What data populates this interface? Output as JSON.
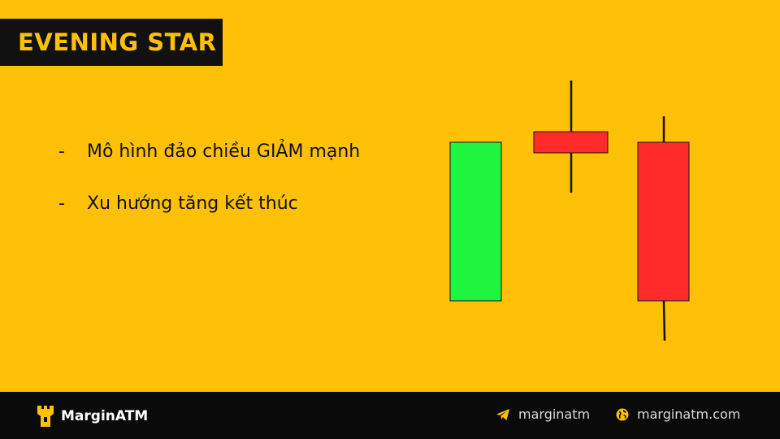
{
  "title": "EVENING STAR",
  "bullets": [
    {
      "dash": "-",
      "text": "Mô hình đảo chiều GIẢM mạnh"
    },
    {
      "dash": "-",
      "text": "Xu hướng tăng kết thúc"
    }
  ],
  "chart_data": {
    "type": "candlestick",
    "candles": [
      {
        "label": "",
        "direction": "bullish",
        "color": "#1EF53C"
      },
      {
        "label": "",
        "direction": "bearish",
        "color": "#FF2A2A"
      },
      {
        "label": "",
        "direction": "bearish",
        "color": "#FF2A2A"
      }
    ]
  },
  "footer": {
    "brand": "MarginATM",
    "telegram": "marginatm",
    "website": "marginatm.com"
  },
  "colors": {
    "background": "#FFC107",
    "dark": "#0A0A0A",
    "bullish": "#1EF53C",
    "bearish": "#FF2A2A"
  },
  "icons": {
    "brand": "rook-tower-icon",
    "telegram": "telegram-plane-icon",
    "website": "globe-icon"
  }
}
